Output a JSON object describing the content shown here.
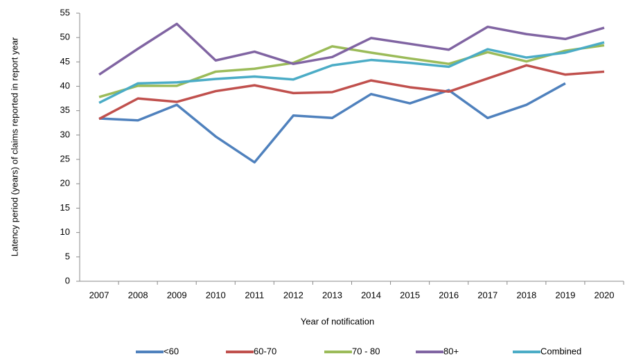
{
  "chart_data": {
    "type": "line",
    "xlabel": "Year of notification",
    "ylabel": "Latency period (years) of claims reported in report year",
    "categories": [
      "2007",
      "2008",
      "2009",
      "2010",
      "2011",
      "2012",
      "2013",
      "2014",
      "2015",
      "2016",
      "2017",
      "2018",
      "2019",
      "2020"
    ],
    "series": [
      {
        "name": "<60",
        "color": "#4f81bd",
        "values": [
          33.4,
          33.0,
          36.2,
          29.7,
          24.4,
          34.0,
          33.5,
          38.4,
          36.5,
          39.2,
          33.5,
          36.2,
          40.6,
          null
        ]
      },
      {
        "name": "60-70",
        "color": "#c0504d",
        "values": [
          33.3,
          37.5,
          36.8,
          39.0,
          40.2,
          38.6,
          38.8,
          41.2,
          39.8,
          38.9,
          41.6,
          44.3,
          42.4,
          43.0
        ]
      },
      {
        "name": "70 - 80",
        "color": "#9bbb59",
        "values": [
          37.8,
          40.1,
          40.1,
          43.0,
          43.6,
          44.8,
          48.2,
          46.9,
          45.7,
          44.6,
          47.0,
          45.1,
          47.3,
          48.4
        ]
      },
      {
        "name": "80+",
        "color": "#8064a2",
        "values": [
          42.4,
          47.7,
          52.8,
          45.3,
          47.1,
          44.6,
          46.0,
          49.9,
          48.7,
          47.5,
          52.2,
          50.7,
          49.7,
          52.0
        ]
      },
      {
        "name": "Combined",
        "color": "#4bacc6",
        "values": [
          36.6,
          40.6,
          40.8,
          41.5,
          42.0,
          41.4,
          44.3,
          45.4,
          44.8,
          44.0,
          47.6,
          45.9,
          46.9,
          49.0
        ]
      }
    ],
    "ylim": [
      0,
      55
    ],
    "yticks": [
      0,
      5,
      10,
      15,
      20,
      25,
      30,
      35,
      40,
      45,
      50,
      55
    ],
    "grid": false,
    "legend": "bottom"
  }
}
